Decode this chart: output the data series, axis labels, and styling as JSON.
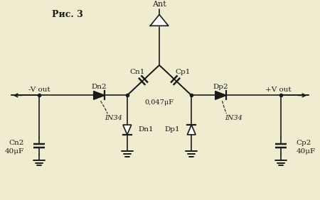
{
  "bg_color": "#f0ecd0",
  "line_color": "#1a1a1a",
  "title": "Рис. 3",
  "ant_label": "Ant",
  "cn1_label": "Cn1",
  "cp1_label": "Cp1",
  "cap_value_label": "0,047μF",
  "dn2_label": "Dn2",
  "dp2_label": "Dp2",
  "dn1_label": "Dn1",
  "dp1_label": "Dp1",
  "in34_left_label": "IN34",
  "in34_right_label": "IN34",
  "cn2_label": "Cn2",
  "cn2_val": "40μF",
  "cp2_label": "Cp2",
  "cp2_val": "40μF",
  "neg_out_label": "-V out",
  "pos_out_label": "+V out"
}
